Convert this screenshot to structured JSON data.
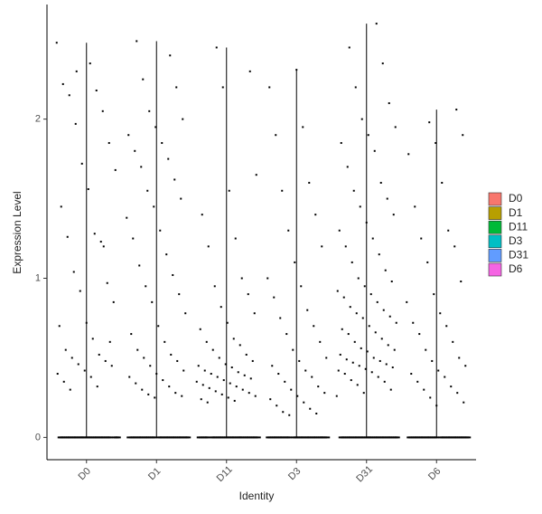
{
  "chart_data": {
    "type": "violin",
    "xlabel": "Identity",
    "ylabel": "Expression Level",
    "categories": [
      "D0",
      "D1",
      "D11",
      "D3",
      "D31",
      "D6"
    ],
    "ylim": [
      -0.14,
      2.72
    ],
    "yticks": [
      0,
      1,
      2
    ],
    "point_color": "#000000",
    "legend": "right",
    "series": [
      {
        "name": "D0",
        "color": "#F8766D",
        "values": [
          2.48,
          2.35,
          2.22,
          2.18,
          2.15,
          2.05,
          1.97,
          1.85,
          1.72,
          1.68,
          1.56,
          1.45,
          1.28,
          1.26,
          1.23,
          1.04,
          0.97,
          0.92,
          0.85,
          0.72,
          0.7,
          0.62,
          0.55,
          0.52,
          0.5,
          0.48,
          0.46,
          0.45,
          0.42,
          0.4,
          0.38,
          0.35,
          0.32,
          0.3,
          1.2,
          2.3,
          0.6,
          0,
          0,
          0,
          0,
          0,
          0,
          0,
          0,
          0,
          0,
          0,
          0,
          0,
          0,
          0,
          0,
          0,
          0,
          0,
          0,
          0,
          0,
          0,
          0,
          0,
          0,
          0,
          0
        ]
      },
      {
        "name": "D1",
        "color": "#B79F00",
        "values": [
          2.49,
          2.4,
          2.25,
          2.2,
          2.05,
          2.0,
          1.95,
          1.9,
          1.85,
          1.8,
          1.75,
          1.7,
          1.62,
          1.55,
          1.5,
          1.45,
          1.38,
          1.3,
          1.25,
          1.15,
          1.08,
          1.02,
          0.95,
          0.9,
          0.85,
          0.78,
          0.7,
          0.65,
          0.6,
          0.55,
          0.52,
          0.5,
          0.48,
          0.45,
          0.42,
          0.4,
          0.38,
          0.36,
          0.34,
          0.32,
          0.3,
          0.28,
          0.27,
          0.26,
          0.25,
          0,
          0,
          0,
          0,
          0,
          0,
          0,
          0,
          0,
          0,
          0,
          0,
          0,
          0,
          0,
          0,
          0,
          0,
          0,
          0,
          0,
          0,
          0,
          0,
          0,
          0,
          0,
          0
        ]
      },
      {
        "name": "D11",
        "color": "#00BA38",
        "values": [
          2.45,
          2.3,
          2.2,
          1.65,
          1.55,
          1.4,
          1.25,
          1.2,
          1.0,
          0.95,
          0.9,
          0.82,
          0.78,
          0.72,
          0.68,
          0.62,
          0.6,
          0.58,
          0.55,
          0.52,
          0.5,
          0.48,
          0.46,
          0.45,
          0.44,
          0.42,
          0.41,
          0.4,
          0.39,
          0.38,
          0.37,
          0.36,
          0.35,
          0.34,
          0.33,
          0.32,
          0.31,
          0.3,
          0.29,
          0.28,
          0.27,
          0.26,
          0.25,
          0.24,
          0.23,
          0.22,
          0,
          0,
          0,
          0,
          0,
          0,
          0,
          0,
          0,
          0,
          0,
          0,
          0,
          0,
          0,
          0,
          0,
          0,
          0,
          0,
          0,
          0,
          0,
          0,
          0,
          0,
          0,
          0
        ]
      },
      {
        "name": "D3",
        "color": "#00BFC4",
        "values": [
          2.31,
          2.2,
          1.95,
          1.9,
          1.6,
          1.55,
          1.4,
          1.3,
          1.2,
          1.1,
          1.0,
          0.95,
          0.88,
          0.8,
          0.75,
          0.7,
          0.65,
          0.6,
          0.55,
          0.5,
          0.48,
          0.45,
          0.42,
          0.4,
          0.38,
          0.35,
          0.32,
          0.3,
          0.28,
          0.26,
          0.24,
          0.22,
          0.2,
          0.18,
          0.16,
          0.15,
          0.14,
          0,
          0,
          0,
          0,
          0,
          0,
          0,
          0,
          0,
          0,
          0,
          0,
          0,
          0,
          0,
          0,
          0,
          0,
          0,
          0,
          0,
          0,
          0,
          0,
          0,
          0,
          0,
          0
        ]
      },
      {
        "name": "D31",
        "color": "#619CFF",
        "values": [
          2.6,
          2.45,
          2.35,
          2.2,
          2.1,
          2.0,
          1.95,
          1.9,
          1.85,
          1.8,
          1.7,
          1.6,
          1.55,
          1.5,
          1.45,
          1.4,
          1.35,
          1.3,
          1.25,
          1.2,
          1.15,
          1.1,
          1.05,
          1.0,
          0.98,
          0.95,
          0.92,
          0.9,
          0.88,
          0.85,
          0.82,
          0.8,
          0.78,
          0.76,
          0.75,
          0.72,
          0.7,
          0.68,
          0.66,
          0.65,
          0.62,
          0.6,
          0.58,
          0.56,
          0.55,
          0.54,
          0.52,
          0.5,
          0.49,
          0.48,
          0.47,
          0.46,
          0.45,
          0.44,
          0.43,
          0.42,
          0.41,
          0.4,
          0.38,
          0.36,
          0.35,
          0.33,
          0.3,
          0.28,
          0.26,
          0,
          0,
          0,
          0,
          0,
          0,
          0,
          0,
          0,
          0,
          0,
          0,
          0,
          0,
          0,
          0,
          0,
          0,
          0,
          0,
          0,
          0,
          0,
          0,
          0,
          0,
          0,
          0
        ]
      },
      {
        "name": "D6",
        "color": "#F564E3",
        "values": [
          2.06,
          1.98,
          1.9,
          1.85,
          1.78,
          1.6,
          1.45,
          1.3,
          1.25,
          1.2,
          1.1,
          0.98,
          0.9,
          0.85,
          0.78,
          0.72,
          0.7,
          0.65,
          0.6,
          0.55,
          0.5,
          0.48,
          0.45,
          0.42,
          0.4,
          0.38,
          0.35,
          0.32,
          0.3,
          0.28,
          0.25,
          0.22,
          0.2,
          0,
          0,
          0,
          0,
          0,
          0,
          0,
          0,
          0,
          0,
          0,
          0,
          0,
          0,
          0,
          0,
          0,
          0,
          0,
          0,
          0,
          0,
          0,
          0,
          0,
          0,
          0,
          0
        ]
      }
    ]
  }
}
